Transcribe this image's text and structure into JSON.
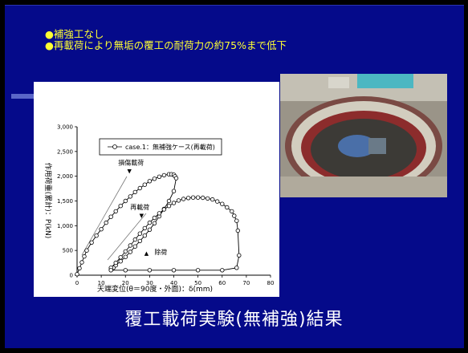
{
  "slide": {
    "bullets": [
      "●補強工なし",
      "●再載荷により無垢の覆工の耐荷力の約75%まで低下"
    ],
    "caption": "覆工載荷実験(無補強)結果",
    "background_color": "#050a8a",
    "bullet_color": "#ffff33"
  },
  "photo": {
    "subject": "circular-tunnel-lining-test-rig"
  },
  "chart_data": {
    "type": "line",
    "xlabel": "天端変位(θ＝90度・外面)：δ(mm)",
    "ylabel": "作用荷重(累計)：P(kN)",
    "xlim": [
      0,
      80
    ],
    "ylim": [
      0,
      3000
    ],
    "x_ticks": [
      "0",
      "10",
      "20",
      "30",
      "40",
      "50",
      "60",
      "70",
      "80"
    ],
    "y_ticks": [
      "0",
      "500",
      "1,000",
      "1,500",
      "2,000",
      "2,500",
      "3,000"
    ],
    "grid": false,
    "legend_position": "top-right",
    "series": [
      {
        "name": "case.1：無補強ケース(再載荷)",
        "marker": "circle-open",
        "color": "#000000",
        "x": [
          0,
          1,
          2,
          3,
          4,
          6,
          8,
          10,
          12,
          14,
          16,
          18,
          20,
          22,
          24,
          26,
          28,
          30,
          32,
          34,
          36,
          38,
          39,
          40,
          40.5,
          41,
          40,
          38,
          36,
          34,
          32,
          30,
          28,
          26,
          24,
          22,
          20,
          18,
          16,
          15,
          14,
          14,
          16,
          18,
          20,
          22,
          24,
          26,
          28,
          30,
          32,
          34,
          36,
          38,
          40,
          42,
          44,
          46,
          48,
          50,
          52,
          54,
          56,
          58,
          60,
          62,
          64,
          65,
          66,
          66.5,
          67,
          66,
          60,
          50,
          40,
          30,
          20,
          14
        ],
        "y": [
          20,
          140,
          260,
          380,
          500,
          660,
          800,
          930,
          1060,
          1180,
          1290,
          1400,
          1500,
          1590,
          1680,
          1760,
          1830,
          1900,
          1950,
          1990,
          2020,
          2040,
          2040,
          2030,
          2000,
          1960,
          1700,
          1500,
          1340,
          1190,
          1050,
          920,
          800,
          690,
          580,
          470,
          370,
          280,
          200,
          150,
          110,
          150,
          250,
          360,
          480,
          600,
          720,
          840,
          950,
          1060,
          1160,
          1250,
          1330,
          1400,
          1460,
          1510,
          1540,
          1560,
          1570,
          1570,
          1565,
          1550,
          1530,
          1490,
          1440,
          1370,
          1290,
          1200,
          1100,
          900,
          400,
          150,
          100,
          100,
          100,
          100,
          100,
          100
        ]
      }
    ],
    "annotations": [
      {
        "text": "損傷載荷",
        "x": 17,
        "y": 2230,
        "arrow": "▼"
      },
      {
        "text": "再載荷",
        "x": 22,
        "y": 1330,
        "arrow": "▼"
      },
      {
        "text": "除荷",
        "x": 32,
        "y": 420,
        "arrow": "▲"
      }
    ]
  }
}
